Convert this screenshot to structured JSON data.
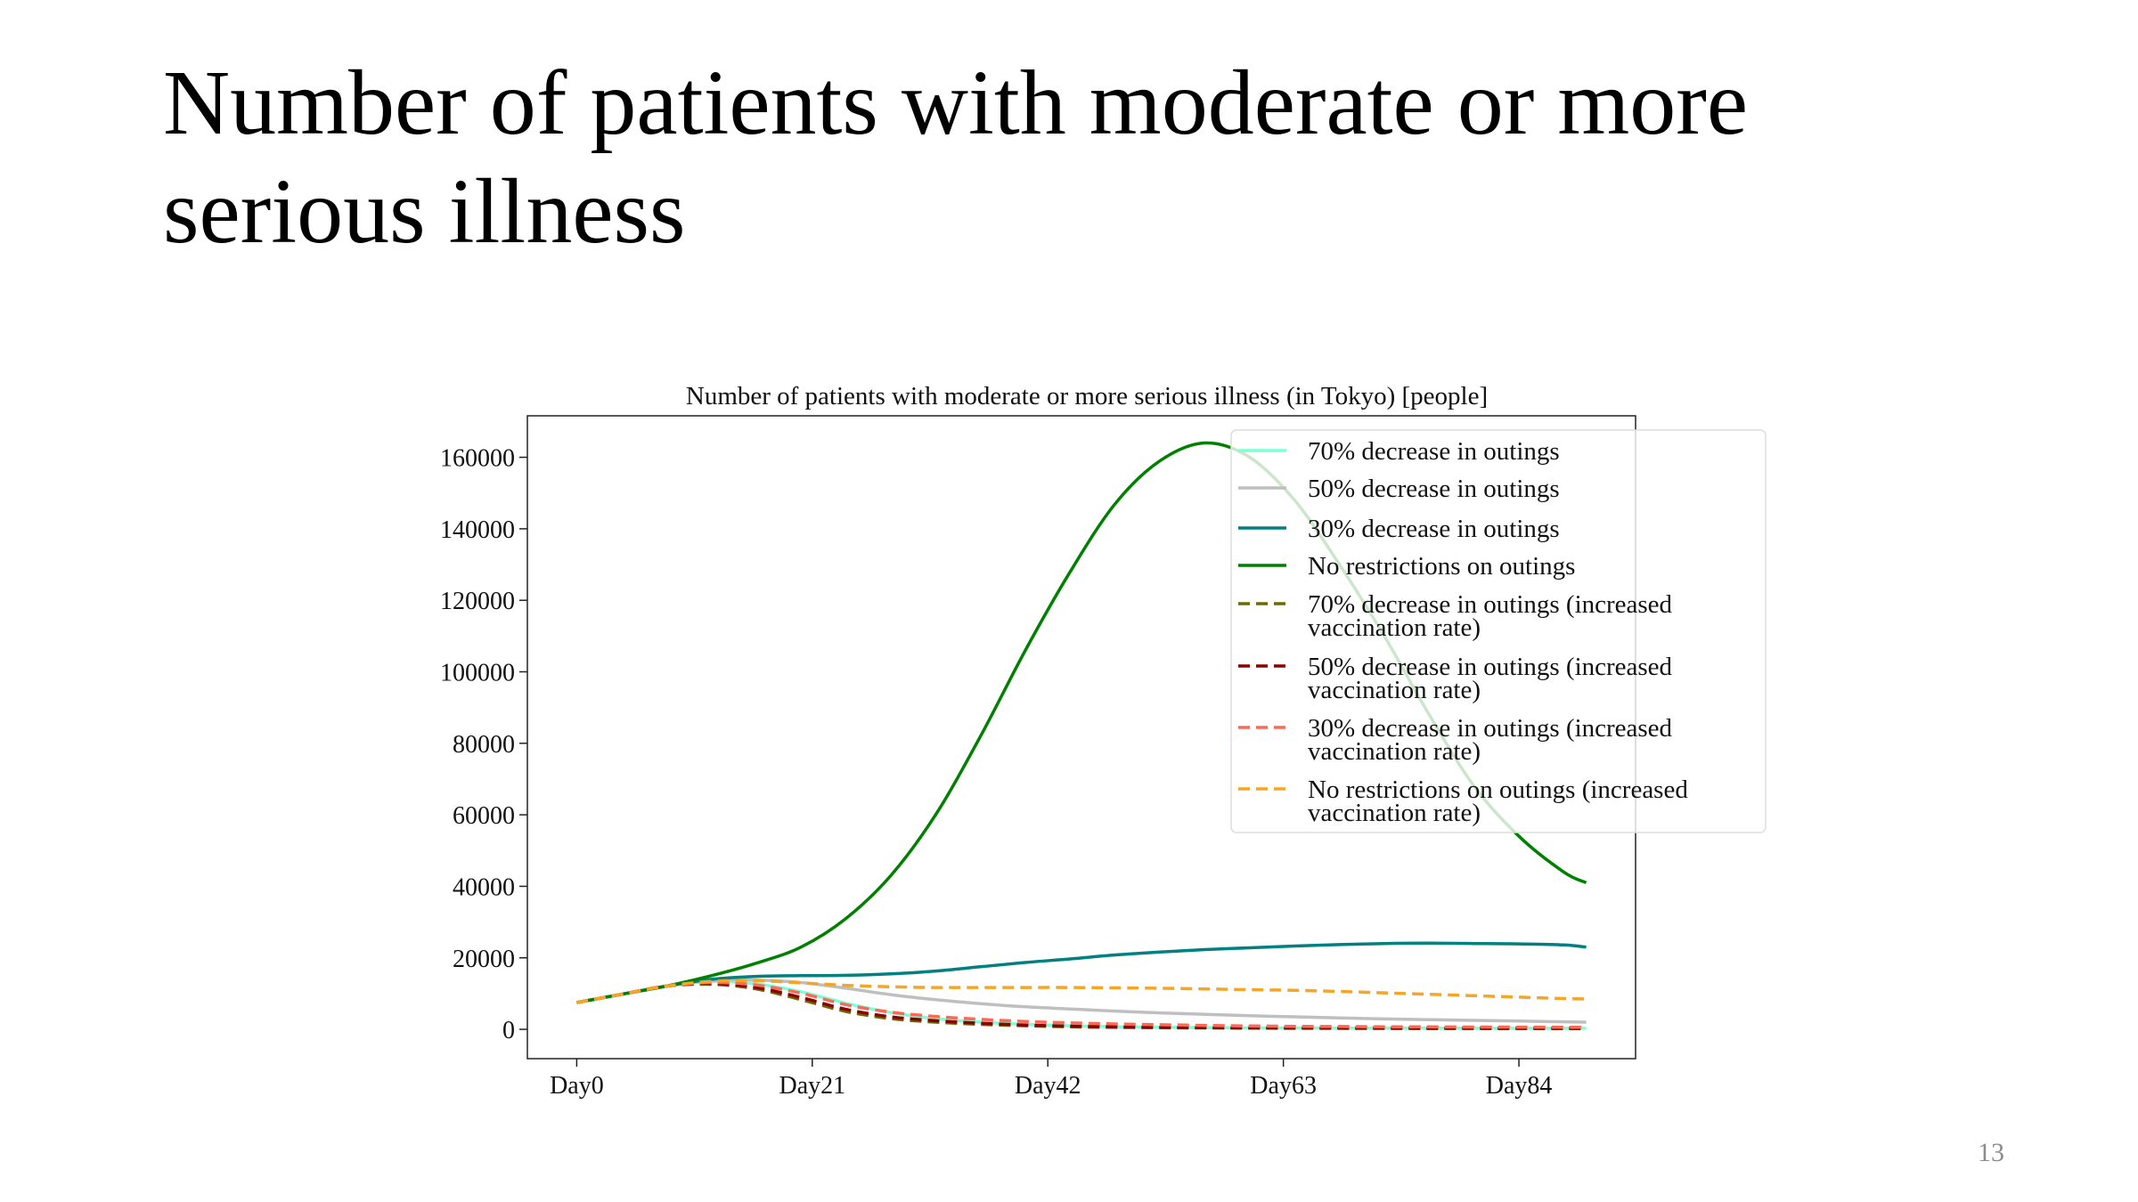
{
  "slide": {
    "title": "Number of patients with moderate or more serious illness",
    "page_number": "13"
  },
  "chart_data": {
    "type": "line",
    "title": "Number of patients with moderate or more serious illness (in Tokyo) [people]",
    "xlabel": "",
    "ylabel": "",
    "x_ticks": [
      "Day0",
      "Day21",
      "Day42",
      "Day63",
      "Day84"
    ],
    "x_tick_values": [
      0,
      21,
      42,
      63,
      84
    ],
    "y_ticks": [
      "0",
      "20000",
      "40000",
      "60000",
      "80000",
      "100000",
      "120000",
      "140000",
      "160000"
    ],
    "y_tick_values": [
      0,
      20000,
      40000,
      60000,
      80000,
      100000,
      120000,
      140000,
      160000
    ],
    "xlim": [
      -4.4,
      94.4
    ],
    "ylim": [
      -8200,
      171600
    ],
    "grid": false,
    "legend_position": "top-right",
    "x": [
      0,
      4,
      8,
      12,
      16,
      20,
      24,
      28,
      32,
      36,
      40,
      44,
      48,
      52,
      56,
      60,
      64,
      68,
      72,
      76,
      80,
      84,
      88,
      90
    ],
    "series": [
      {
        "name": "70% decrease in outings",
        "color": "#7fffd4",
        "dash": "solid",
        "values": [
          7500,
          9800,
          12100,
          13400,
          12700,
          10500,
          7300,
          4700,
          3000,
          2000,
          1400,
          1000,
          750,
          600,
          500,
          420,
          380,
          350,
          330,
          320,
          310,
          300,
          300,
          300
        ]
      },
      {
        "name": "50% decrease in outings",
        "color": "#bfbfbf",
        "dash": "solid",
        "values": [
          7500,
          9800,
          12100,
          13600,
          13800,
          13100,
          11500,
          9700,
          8300,
          7200,
          6300,
          5700,
          5100,
          4600,
          4200,
          3800,
          3500,
          3200,
          2900,
          2700,
          2500,
          2300,
          2100,
          2000
        ]
      },
      {
        "name": "30% decrease in outings",
        "color": "#008080",
        "dash": "solid",
        "values": [
          7500,
          9800,
          12100,
          14000,
          14800,
          15000,
          15100,
          15500,
          16300,
          17500,
          18700,
          19700,
          20800,
          21600,
          22300,
          22800,
          23300,
          23700,
          24000,
          24100,
          24000,
          23900,
          23600,
          23000
        ]
      },
      {
        "name": "No restrictions on outings",
        "color": "#008000",
        "dash": "solid",
        "values": [
          7500,
          9800,
          12100,
          15000,
          18500,
          23000,
          31000,
          43000,
          60000,
          82000,
          106000,
          128000,
          147000,
          159000,
          164000,
          160000,
          148000,
          130000,
          110000,
          88000,
          68000,
          54000,
          44000,
          41000
        ]
      },
      {
        "name": "70% decrease in outings (increased vaccination rate)",
        "color": "#6b6b00",
        "dash": "dashed",
        "values": [
          7500,
          9800,
          12100,
          12600,
          11300,
          8300,
          5000,
          3000,
          2000,
          1400,
          1000,
          700,
          550,
          450,
          380,
          330,
          300,
          280,
          260,
          250,
          240,
          230,
          220,
          220
        ]
      },
      {
        "name": "50% decrease in outings (increased vaccination rate)",
        "color": "#8b0000",
        "dash": "dashed",
        "values": [
          7500,
          9800,
          12100,
          12800,
          11700,
          8900,
          5600,
          3500,
          2400,
          1700,
          1200,
          900,
          700,
          560,
          470,
          400,
          360,
          330,
          310,
          290,
          280,
          270,
          260,
          260
        ]
      },
      {
        "name": "30% decrease in outings (increased vaccination rate)",
        "color": "#fa6a58",
        "dash": "dashed",
        "values": [
          7500,
          9800,
          12100,
          13100,
          12400,
          10100,
          6900,
          4800,
          3600,
          2800,
          2200,
          1800,
          1500,
          1300,
          1100,
          950,
          850,
          780,
          720,
          680,
          650,
          620,
          600,
          580
        ]
      },
      {
        "name": "No restrictions on outings (increased vaccination rate)",
        "color": "#f5a623",
        "dash": "dashed",
        "values": [
          7500,
          9800,
          12100,
          13400,
          13600,
          13000,
          12300,
          11900,
          11700,
          11700,
          11700,
          11700,
          11600,
          11500,
          11300,
          11100,
          10900,
          10600,
          10200,
          9800,
          9400,
          9000,
          8600,
          8500
        ]
      }
    ]
  }
}
